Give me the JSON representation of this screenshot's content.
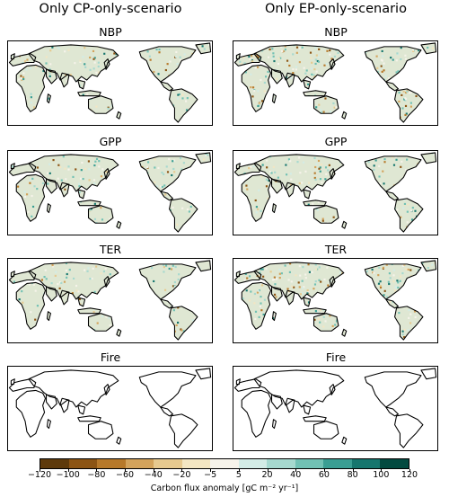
{
  "columns": [
    {
      "title": "Only CP-only-scenario"
    },
    {
      "title": "Only EP-only-scenario"
    }
  ],
  "rows": [
    {
      "title": "NBP"
    },
    {
      "title": "GPP"
    },
    {
      "title": "TER"
    },
    {
      "title": "Fire"
    }
  ],
  "colorbar": {
    "label": "Carbon flux anomaly [gC m⁻² yr⁻¹]",
    "ticks": [
      "−120",
      "−100",
      "−80",
      "−60",
      "−40",
      "−20",
      "−5",
      "5",
      "20",
      "40",
      "60",
      "80",
      "100",
      "120"
    ],
    "colors": [
      "#5e3a0b",
      "#8c5413",
      "#b7792a",
      "#d3a35c",
      "#e6c98f",
      "#f3e6c2",
      "#f6f3ea",
      "#d3ece6",
      "#a6d9cf",
      "#71c1b4",
      "#3a9e93",
      "#16766e",
      "#024a40"
    ]
  },
  "coastline_color": "#000000"
}
